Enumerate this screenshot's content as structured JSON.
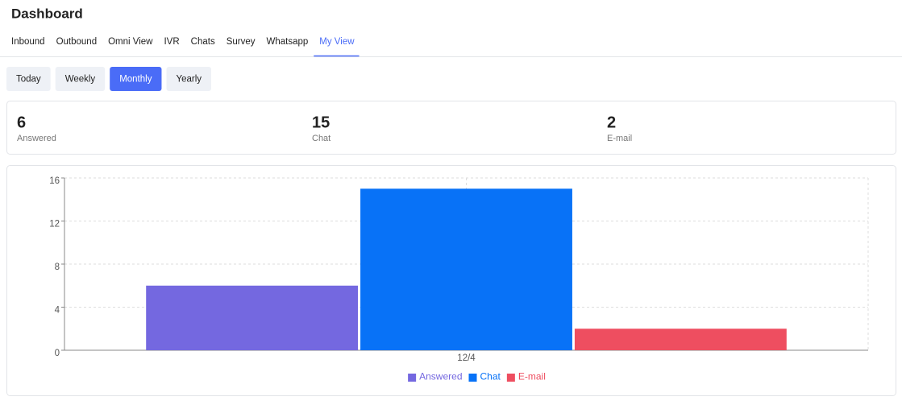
{
  "header": {
    "title": "Dashboard"
  },
  "tabs": [
    "Inbound",
    "Outbound",
    "Omni View",
    "IVR",
    "Chats",
    "Survey",
    "Whatsapp",
    "My View"
  ],
  "active_tab": 7,
  "periods": [
    "Today",
    "Weekly",
    "Monthly",
    "Yearly"
  ],
  "active_period": 2,
  "stats": [
    {
      "value": 6,
      "label": "Answered"
    },
    {
      "value": 15,
      "label": "Chat"
    },
    {
      "value": 2,
      "label": "E-mail"
    }
  ],
  "chart_data": {
    "type": "bar",
    "categories": [
      "12/4"
    ],
    "series": [
      {
        "name": "Answered",
        "color": "#7468e0",
        "values": [
          6
        ]
      },
      {
        "name": "Chat",
        "color": "#0872f7",
        "values": [
          15
        ]
      },
      {
        "name": "E-mail",
        "color": "#ee4e60",
        "values": [
          2
        ]
      }
    ],
    "ylim": [
      0,
      16
    ],
    "yticks": [
      0,
      4,
      8,
      12,
      16
    ],
    "grid": true,
    "legend": "bottom"
  }
}
